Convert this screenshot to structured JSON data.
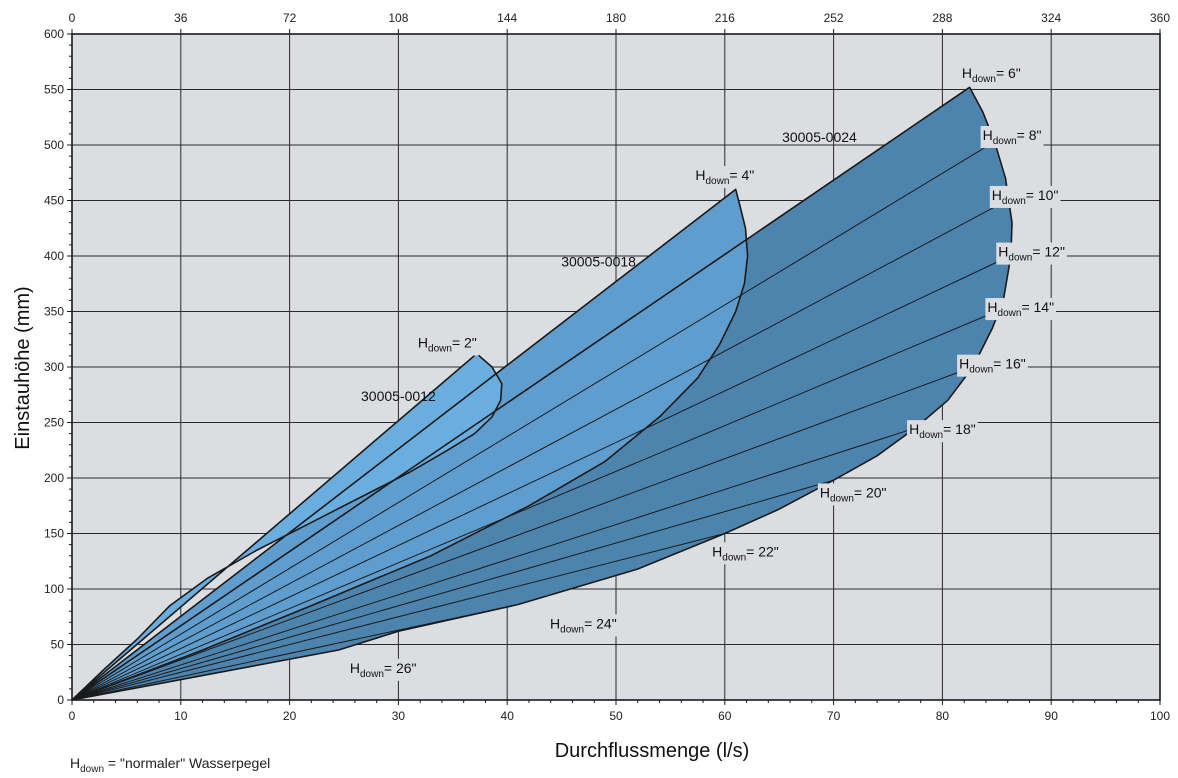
{
  "chart_data": {
    "type": "area",
    "xlabel": "Durchflussmenge (l/s)",
    "ylabel": "Einstauhöhe (mm)",
    "xlim": [
      0,
      100
    ],
    "ylim": [
      0,
      600
    ],
    "x_ticks": [
      0,
      10,
      20,
      30,
      40,
      50,
      60,
      70,
      80,
      90,
      100
    ],
    "y_ticks": [
      0,
      50,
      100,
      150,
      200,
      250,
      300,
      350,
      400,
      450,
      500,
      550,
      600
    ],
    "top_axis_ticks": [
      0,
      36,
      72,
      108,
      144,
      180,
      216,
      252,
      288,
      324,
      360
    ],
    "grid": true,
    "colors": {
      "plot_bg": "#dcdde0",
      "grid": "#2a2a2a",
      "region_small": "#6aaee0",
      "region_medium": "#5e9dcd",
      "region_large": "#4d84ad",
      "outline": "#1a1a1a"
    },
    "footnote": {
      "h": "H",
      "sub": "down",
      "text": " = \"normaler\" Wasserpegel"
    },
    "series": [
      {
        "name": "30005-0012",
        "boundary": [
          [
            0,
            0
          ],
          [
            37.2,
            312
          ],
          [
            38.6,
            300
          ],
          [
            39.5,
            285
          ],
          [
            39.4,
            270
          ],
          [
            38.6,
            255
          ],
          [
            37,
            240
          ],
          [
            34.5,
            225
          ],
          [
            31,
            205
          ],
          [
            27,
            185
          ],
          [
            22,
            160
          ],
          [
            17,
            135
          ],
          [
            12.5,
            110
          ],
          [
            9,
            85
          ],
          [
            6,
            55
          ],
          [
            3,
            28
          ],
          [
            0,
            0
          ]
        ]
      },
      {
        "name": "30005-0018",
        "boundary": [
          [
            0,
            0
          ],
          [
            61,
            460
          ],
          [
            61.4,
            445
          ],
          [
            61.9,
            425
          ],
          [
            62.1,
            400
          ],
          [
            61.8,
            375
          ],
          [
            61,
            350
          ],
          [
            59.5,
            320
          ],
          [
            57.5,
            290
          ],
          [
            54,
            255
          ],
          [
            49,
            215
          ],
          [
            42,
            175
          ],
          [
            33,
            130
          ],
          [
            22,
            85
          ],
          [
            12,
            45
          ],
          [
            0,
            0
          ]
        ]
      },
      {
        "name": "30005-0024",
        "boundary": [
          [
            0,
            0
          ],
          [
            82.5,
            552
          ],
          [
            83.7,
            530
          ],
          [
            84.8,
            503
          ],
          [
            85.8,
            470
          ],
          [
            86.4,
            430
          ],
          [
            86.3,
            400
          ],
          [
            85.6,
            360
          ],
          [
            84.6,
            335
          ],
          [
            82.8,
            300
          ],
          [
            80.5,
            270
          ],
          [
            77.5,
            245
          ],
          [
            74,
            220
          ],
          [
            70,
            198
          ],
          [
            65,
            172
          ],
          [
            60,
            150
          ],
          [
            52,
            118
          ],
          [
            41,
            86
          ],
          [
            30,
            62
          ],
          [
            24.5,
            45
          ],
          [
            0,
            0
          ]
        ]
      }
    ],
    "model_labels": [
      {
        "text": "30005-0012",
        "x": 30,
        "y": 274
      },
      {
        "text": "30005-0018",
        "x": 48.4,
        "y": 395
      },
      {
        "text": "30005-0024",
        "x": 68.7,
        "y": 507
      }
    ],
    "h_down_lines": [
      {
        "value": "2\"",
        "end": [
          37.2,
          312
        ]
      },
      {
        "value": "4\"",
        "end": [
          61,
          460
        ]
      },
      {
        "value": "6\"",
        "end": [
          82.5,
          552
        ]
      },
      {
        "value": "8\"",
        "end": [
          84.8,
          503
        ]
      },
      {
        "value": "10\"",
        "end": [
          86.1,
          451
        ]
      },
      {
        "value": "12\"",
        "end": [
          86.2,
          400
        ]
      },
      {
        "value": "14\"",
        "end": [
          85.2,
          351
        ]
      },
      {
        "value": "16\"",
        "end": [
          82.8,
          300
        ]
      },
      {
        "value": "18\"",
        "end": [
          77.5,
          245
        ]
      },
      {
        "value": "20\"",
        "end": [
          70,
          198
        ]
      },
      {
        "value": "22\"",
        "end": [
          60,
          150
        ]
      },
      {
        "value": "24\"",
        "end": [
          41,
          86
        ]
      },
      {
        "value": "26\"",
        "end": [
          24.5,
          45
        ]
      }
    ],
    "h_down_labels": [
      {
        "h": "H",
        "sub": "down",
        "value": "= 2\"",
        "x": 34.5,
        "y": 322
      },
      {
        "h": "H",
        "sub": "down",
        "value": "= 4\"",
        "x": 60,
        "y": 473
      },
      {
        "h": "H",
        "sub": "down",
        "value": "= 6\"",
        "x": 84.5,
        "y": 565
      },
      {
        "h": "H",
        "sub": "down",
        "value": "= 8\"",
        "x": 86.4,
        "y": 509
      },
      {
        "h": "H",
        "sub": "down",
        "value": "= 10\"",
        "x": 87.6,
        "y": 455
      },
      {
        "h": "H",
        "sub": "down",
        "value": "= 12\"",
        "x": 88.2,
        "y": 404
      },
      {
        "h": "H",
        "sub": "down",
        "value": "= 14\"",
        "x": 87.2,
        "y": 354
      },
      {
        "h": "H",
        "sub": "down",
        "value": "= 16\"",
        "x": 84.6,
        "y": 303
      },
      {
        "h": "H",
        "sub": "down",
        "value": "= 18\"",
        "x": 80,
        "y": 244
      },
      {
        "h": "H",
        "sub": "down",
        "value": "= 20\"",
        "x": 71.8,
        "y": 187
      },
      {
        "h": "H",
        "sub": "down",
        "value": "= 22\"",
        "x": 61.9,
        "y": 134
      },
      {
        "h": "H",
        "sub": "down",
        "value": "= 24\"",
        "x": 47,
        "y": 69
      },
      {
        "h": "H",
        "sub": "down",
        "value": "= 26\"",
        "x": 28.6,
        "y": 29
      }
    ]
  }
}
